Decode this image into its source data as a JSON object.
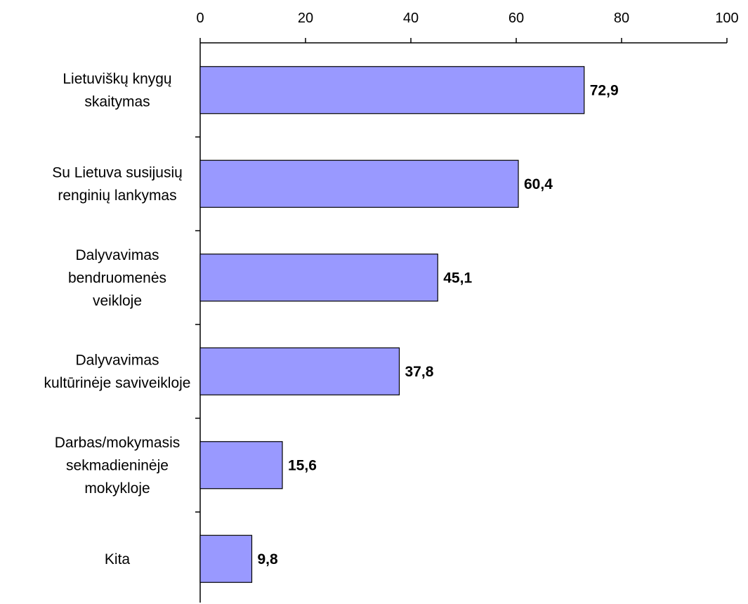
{
  "chart_data": {
    "type": "bar",
    "orientation": "horizontal",
    "title": "",
    "xlabel": "",
    "ylabel": "",
    "xlim": [
      0,
      100
    ],
    "x_ticks": [
      0,
      20,
      40,
      60,
      80,
      100
    ],
    "x_tick_labels": [
      "0",
      "20",
      "40",
      "60",
      "80",
      "100"
    ],
    "x_axis_position": "top",
    "grid": false,
    "legend": "none",
    "bar_color": "#9999ff",
    "categories": [
      [
        "Lietuviškų knygų",
        "skaitymas"
      ],
      [
        "Su Lietuva susijusių",
        "renginių lankymas"
      ],
      [
        "Dalyvavimas",
        "bendruomenės",
        "veikloje"
      ],
      [
        "Dalyvavimas",
        "kultūrinėje saviveikloje"
      ],
      [
        "Darbas/mokymasis",
        "sekmadieninėje",
        "mokykloje"
      ],
      [
        "Kita"
      ]
    ],
    "values": [
      72.9,
      60.4,
      45.1,
      37.8,
      15.6,
      9.8
    ],
    "value_labels": [
      "72,9",
      "60,4",
      "45,1",
      "37,8",
      "15,6",
      "9,8"
    ]
  }
}
